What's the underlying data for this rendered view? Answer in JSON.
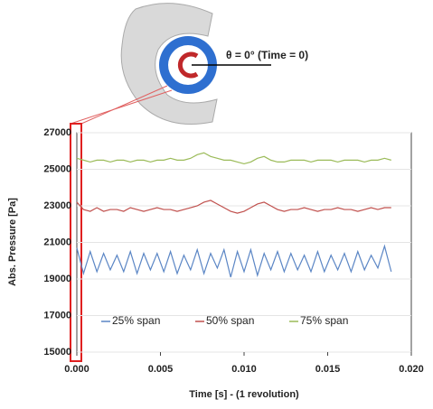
{
  "chart_data": {
    "type": "line",
    "annotation": "θ = 0° (Time = 0)",
    "xlabel": "Time [s] - (1 revolution)",
    "ylabel": "Abs. Pressure [Pa]",
    "xlim": [
      0,
      0.02
    ],
    "xticks": [
      {
        "value": 0,
        "label": "0.000"
      },
      {
        "value": 0.005,
        "label": "0.005"
      },
      {
        "value": 0.01,
        "label": "0.010"
      },
      {
        "value": 0.015,
        "label": "0.015"
      },
      {
        "value": 0.02,
        "label": "0.020"
      }
    ],
    "ylim": [
      15000,
      27000
    ],
    "yticks": [
      15000,
      17000,
      19000,
      21000,
      23000,
      25000,
      27000
    ],
    "grid": true,
    "x": [
      0,
      0.0004,
      0.0008,
      0.0012,
      0.0016,
      0.002,
      0.0024,
      0.0028,
      0.0032,
      0.0036,
      0.004,
      0.0044,
      0.0048,
      0.0052,
      0.0056,
      0.006,
      0.0064,
      0.0068,
      0.0072,
      0.0076,
      0.008,
      0.0084,
      0.0088,
      0.0092,
      0.0096,
      0.01,
      0.0104,
      0.0108,
      0.0112,
      0.0116,
      0.012,
      0.0124,
      0.0128,
      0.0132,
      0.0136,
      0.014,
      0.0144,
      0.0148,
      0.0152,
      0.0156,
      0.016,
      0.0164,
      0.0168,
      0.0172,
      0.0176,
      0.018,
      0.0184,
      0.0188
    ],
    "series": [
      {
        "name": "25% span",
        "color": "#5b86c5",
        "values": [
          20700,
          19300,
          20500,
          19400,
          20400,
          19500,
          20300,
          19400,
          20500,
          19300,
          20400,
          19500,
          20400,
          19400,
          20500,
          19300,
          20300,
          19500,
          20600,
          19300,
          20400,
          19600,
          20600,
          19100,
          20500,
          19400,
          20600,
          19200,
          20400,
          19500,
          20500,
          19400,
          20400,
          19500,
          20300,
          19400,
          20500,
          19400,
          20300,
          19500,
          20400,
          19400,
          20500,
          19500,
          20300,
          19600,
          20800,
          19400
        ]
      },
      {
        "name": "50% span",
        "color": "#c0504d",
        "values": [
          23200,
          22800,
          22700,
          22900,
          22700,
          22800,
          22800,
          22700,
          22900,
          22800,
          22700,
          22800,
          22900,
          22800,
          22800,
          22700,
          22800,
          22900,
          23000,
          23200,
          23300,
          23100,
          22900,
          22700,
          22600,
          22700,
          22900,
          23100,
          23200,
          23000,
          22800,
          22700,
          22800,
          22800,
          22900,
          22800,
          22700,
          22800,
          22800,
          22900,
          22800,
          22800,
          22700,
          22800,
          22900,
          22800,
          22900,
          22900
        ]
      },
      {
        "name": "75% span",
        "color": "#9bbb59",
        "values": [
          25600,
          25500,
          25400,
          25500,
          25500,
          25400,
          25500,
          25500,
          25400,
          25500,
          25500,
          25400,
          25500,
          25500,
          25600,
          25500,
          25500,
          25600,
          25800,
          25900,
          25700,
          25600,
          25500,
          25500,
          25400,
          25300,
          25400,
          25600,
          25700,
          25500,
          25400,
          25400,
          25500,
          25500,
          25500,
          25400,
          25500,
          25500,
          25500,
          25400,
          25500,
          25500,
          25500,
          25400,
          25500,
          25500,
          25600,
          25500
        ]
      }
    ]
  }
}
